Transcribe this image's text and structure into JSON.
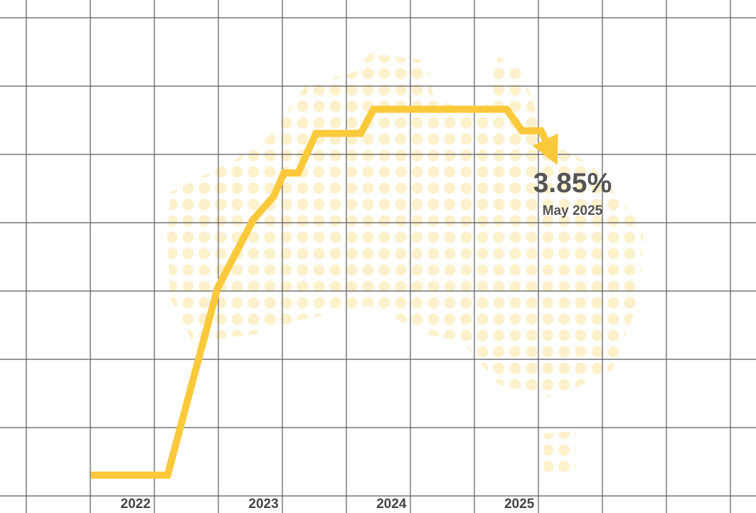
{
  "chart_data": {
    "type": "line",
    "xlim": [
      2020.94,
      2026.85
    ],
    "ylim": [
      -0.34,
      5.62
    ],
    "xticks": [
      2022,
      2023,
      2024,
      2025
    ],
    "series": [
      {
        "color": "#fcc93a",
        "x": [
          2021.65,
          2022.25,
          2022.64,
          2022.92,
          2023.08,
          2023.16,
          2023.27,
          2023.41,
          2023.76,
          2023.86,
          2024.9,
          2025.02,
          2025.17,
          2025.25
        ],
        "values": [
          0.1,
          0.1,
          2.27,
          3.07,
          3.34,
          3.61,
          3.61,
          4.07,
          4.07,
          4.35,
          4.35,
          4.1,
          4.1,
          3.85
        ]
      }
    ],
    "annotation": {
      "text": "3.85%",
      "subtext": "May 2025"
    }
  }
}
